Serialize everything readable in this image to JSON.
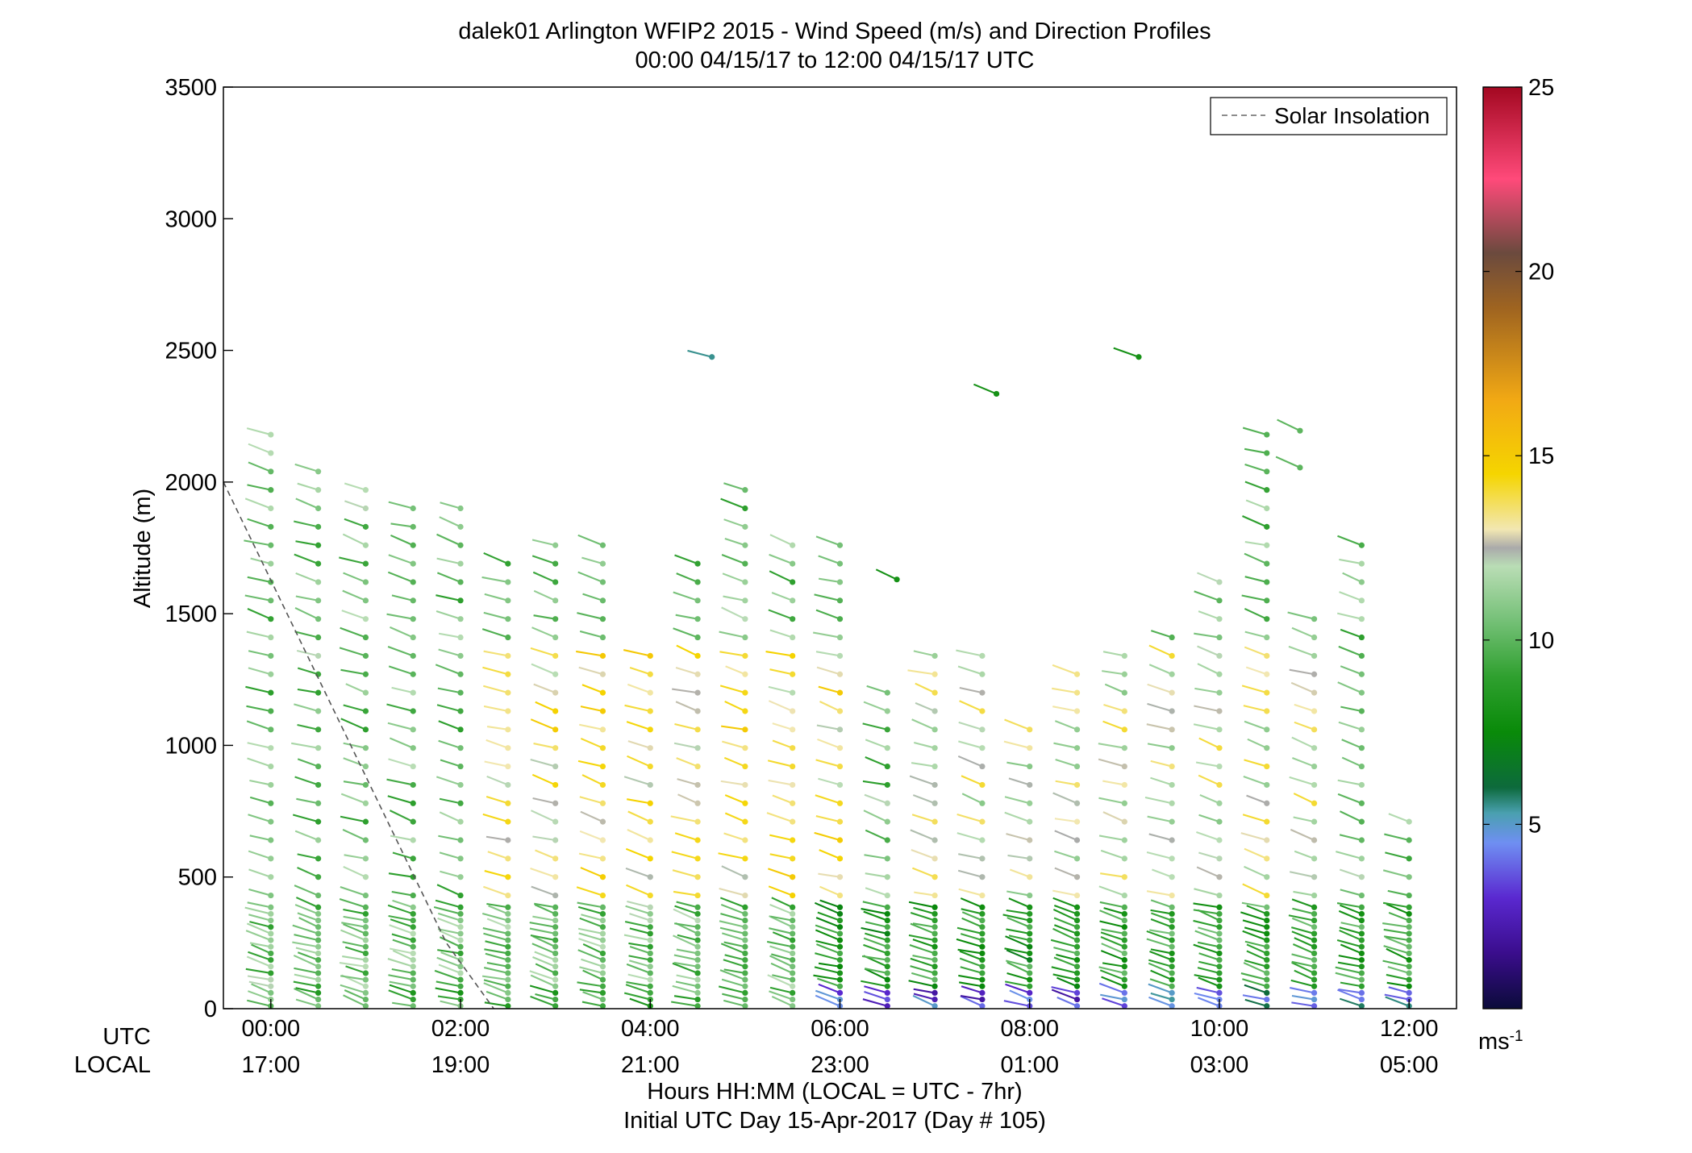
{
  "chart_data": {
    "type": "scatter",
    "title": "dalek01 Arlington WFIP2 2015 - Wind Speed (m/s) and Direction Profiles",
    "subtitle": "00:00 04/15/17 to 12:00 04/15/17  UTC",
    "ylabel": "Altitude (m)",
    "xlabel": "Hours HH:MM  (LOCAL = UTC - 7hr)",
    "xlabel2": "Initial UTC Day 15-Apr-2017 (Day # 105)",
    "row_label_utc": "UTC",
    "row_label_local": "LOCAL",
    "xlim_hours": [
      -0.5,
      12.5
    ],
    "ylim": [
      0,
      3500
    ],
    "yticks": [
      "0",
      "500",
      "1000",
      "1500",
      "2000",
      "2500",
      "3000",
      "3500"
    ],
    "xticks_utc": [
      "00:00",
      "02:00",
      "04:00",
      "06:00",
      "08:00",
      "10:00",
      "12:00"
    ],
    "xticks_local": [
      "17:00",
      "19:00",
      "21:00",
      "23:00",
      "01:00",
      "03:00",
      "05:00"
    ],
    "legend": {
      "label": "Solar Insolation",
      "placement": "top-right"
    },
    "grid": false,
    "solar_insolation_line": {
      "x_hours": [
        -0.5,
        1.85,
        2.35
      ],
      "altitude": [
        2000,
        250,
        0
      ],
      "color": "#555555"
    },
    "colorbar": {
      "min": 0,
      "max": 25,
      "tick_labels": [
        "5",
        "10",
        "15",
        "20",
        "25"
      ],
      "tick_values": [
        5,
        10,
        15,
        20,
        25
      ],
      "units_label": "ms",
      "units_exponent": "-1",
      "stops": [
        {
          "v": 0,
          "color": "#0b0b3a"
        },
        {
          "v": 1.5,
          "color": "#3a0d8c"
        },
        {
          "v": 3,
          "color": "#5a28d0"
        },
        {
          "v": 4.5,
          "color": "#6f8ff2"
        },
        {
          "v": 5.3,
          "color": "#4aa0b0"
        },
        {
          "v": 6,
          "color": "#0d6a3c"
        },
        {
          "v": 7.5,
          "color": "#098a09"
        },
        {
          "v": 9,
          "color": "#2fa02f"
        },
        {
          "v": 10.5,
          "color": "#74c076"
        },
        {
          "v": 12,
          "color": "#b9ddb5"
        },
        {
          "v": 12.5,
          "color": "#aaaaaa"
        },
        {
          "v": 13,
          "color": "#f2e7b2"
        },
        {
          "v": 14.5,
          "color": "#f5d500"
        },
        {
          "v": 16.5,
          "color": "#f2a914"
        },
        {
          "v": 19,
          "color": "#9f6420"
        },
        {
          "v": 20.5,
          "color": "#6b4a3e"
        },
        {
          "v": 22.5,
          "color": "#ff4a7a"
        },
        {
          "v": 25,
          "color": "#a30821"
        }
      ]
    },
    "profiles": [
      {
        "hour": 0.0,
        "top": 2200,
        "gap": 1
      },
      {
        "hour": 0.5,
        "top": 2050,
        "gap": 1
      },
      {
        "hour": 1.0,
        "top": 1980,
        "gap": 1
      },
      {
        "hour": 1.5,
        "top": 1910,
        "gap": 1
      },
      {
        "hour": 2.0,
        "top": 1910,
        "gap": 1
      },
      {
        "hour": 2.5,
        "top": 1700,
        "gap": 1
      },
      {
        "hour": 3.0,
        "top": 1770,
        "gap": 1
      },
      {
        "hour": 3.5,
        "top": 1770,
        "gap": 1
      },
      {
        "hour": 4.0,
        "top": 1350,
        "gap": 1
      },
      {
        "hour": 4.5,
        "top": 1700,
        "gap": 1
      },
      {
        "hour": 5.0,
        "top": 1980,
        "gap": 1
      },
      {
        "hour": 5.5,
        "top": 1770,
        "gap": 1
      },
      {
        "hour": 6.0,
        "top": 1770,
        "gap": 1
      },
      {
        "hour": 6.5,
        "top": 1210,
        "gap": 1
      },
      {
        "hour": 7.0,
        "top": 1350,
        "gap": 1
      },
      {
        "hour": 7.5,
        "top": 1350,
        "gap": 1
      },
      {
        "hour": 8.0,
        "top": 1060,
        "gap": 1
      },
      {
        "hour": 8.5,
        "top": 1280,
        "gap": 1
      },
      {
        "hour": 9.0,
        "top": 1350,
        "gap": 1
      },
      {
        "hour": 9.5,
        "top": 1420,
        "gap": 1
      },
      {
        "hour": 10.0,
        "top": 1630,
        "gap": 1
      },
      {
        "hour": 10.5,
        "top": 2200,
        "gap": 1
      },
      {
        "hour": 11.0,
        "top": 1490,
        "gap": 1
      },
      {
        "hour": 11.5,
        "top": 1770,
        "gap": 1
      },
      {
        "hour": 12.0,
        "top": 720,
        "gap": 0
      }
    ],
    "isolated_points": [
      {
        "hour": 4.65,
        "altitude": 2475,
        "speed": 5.5
      },
      {
        "hour": 7.65,
        "altitude": 2335,
        "speed": 8
      },
      {
        "hour": 9.15,
        "altitude": 2475,
        "speed": 8
      },
      {
        "hour": 10.85,
        "altitude": 2195,
        "speed": 10
      },
      {
        "hour": 10.85,
        "altitude": 2055,
        "speed": 10
      },
      {
        "hour": 6.6,
        "altitude": 1630,
        "speed": 8
      }
    ]
  }
}
